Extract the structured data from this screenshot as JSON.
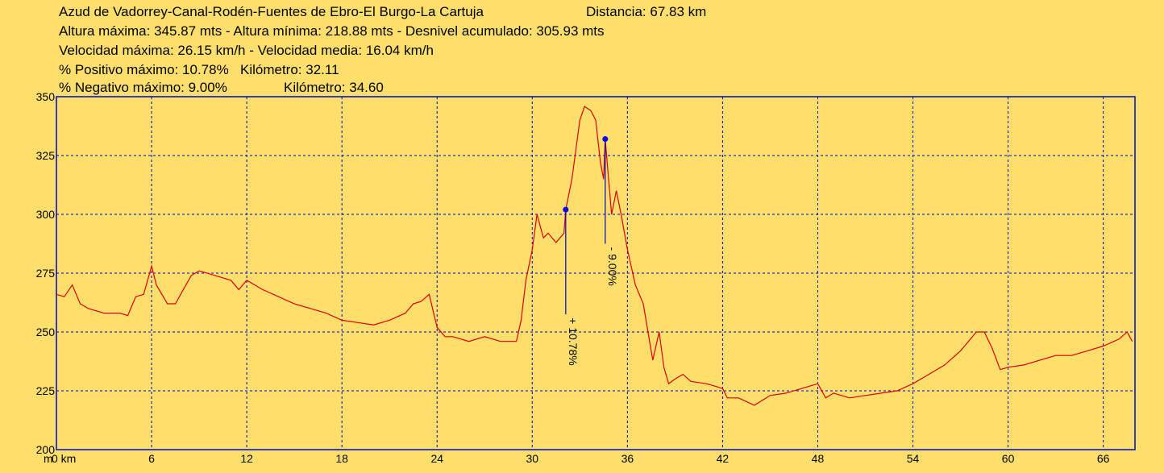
{
  "chart_data": {
    "type": "line",
    "title": "Azud de Vadorrey-Canal-Rodén-Fuentes de Ebro-El Burgo-La Cartuja",
    "info": [
      "Distancia: 67.83 km",
      "Altura máxima: 345.87 mts - Altura mínima: 218.88 mts - Desnivel acumulado: 305.93 mts",
      "Velocidad máxima: 26.15 km/h - Velocidad media: 16.04 km/h",
      "% Positivo máximo: 10.78%",
      "Kilómetro: 32.11",
      "% Negativo máximo: 9.00%",
      "Kilómetro: 34.60"
    ],
    "y_unit": "m",
    "color": "#e00000",
    "grid": true,
    "xlim": [
      0,
      68
    ],
    "ylim": [
      200,
      350
    ],
    "xticks": [
      {
        "value": 0,
        "label": "0 km"
      },
      6,
      12,
      18,
      24,
      30,
      36,
      42,
      48,
      54,
      60,
      66
    ],
    "yticks": [
      200,
      225,
      250,
      275,
      300,
      325,
      350
    ],
    "x": [
      0,
      0.5,
      1,
      1.5,
      2,
      3,
      4,
      4.5,
      5,
      5.5,
      6,
      6.3,
      7,
      7.5,
      8,
      8.5,
      9,
      10,
      11,
      11.5,
      12,
      13,
      14,
      15,
      16,
      17,
      18,
      19,
      20,
      21,
      22,
      22.5,
      23,
      23.5,
      24,
      24.5,
      25,
      26,
      27,
      28,
      29,
      29.3,
      29.6,
      30,
      30.3,
      30.7,
      31,
      31.5,
      32,
      32.11,
      32.5,
      33,
      33.3,
      33.7,
      34,
      34.3,
      34.5,
      34.6,
      35,
      35.3,
      35.6,
      36,
      36.5,
      37,
      37.3,
      37.6,
      38,
      38.3,
      38.6,
      39,
      39.5,
      40,
      41,
      42,
      42.3,
      43,
      44,
      45,
      46,
      47,
      48,
      48.5,
      49,
      50,
      51,
      52,
      53,
      54,
      55,
      56,
      57,
      58,
      58.5,
      59,
      59.5,
      60,
      61,
      62,
      63,
      64,
      65,
      66,
      67,
      67.5,
      67.83
    ],
    "values": [
      266,
      265,
      270,
      262,
      260,
      258,
      258,
      257,
      265,
      266,
      278,
      270,
      262,
      262,
      268,
      274,
      276,
      274,
      272,
      268,
      272,
      268,
      265,
      262,
      260,
      258,
      255,
      254,
      253,
      255,
      258,
      262,
      263,
      266,
      252,
      248,
      248,
      246,
      248,
      246,
      246,
      255,
      272,
      285,
      300,
      290,
      292,
      288,
      292,
      302,
      315,
      340,
      345.87,
      344,
      340,
      322,
      315,
      332,
      300,
      310,
      300,
      285,
      270,
      262,
      250,
      238,
      250,
      235,
      228,
      230,
      232,
      229,
      228,
      226,
      222,
      222,
      218.88,
      223,
      224,
      226,
      228,
      222,
      224,
      222,
      223,
      224,
      225,
      228,
      232,
      236,
      242,
      250,
      250,
      243,
      234,
      235,
      236,
      238,
      240,
      240,
      242,
      244,
      247,
      250,
      246
    ],
    "markers": [
      {
        "x": 32.11,
        "y": 302,
        "label": "+ 10.78%"
      },
      {
        "x": 34.6,
        "y": 332,
        "label": "- 9.00%"
      }
    ]
  }
}
